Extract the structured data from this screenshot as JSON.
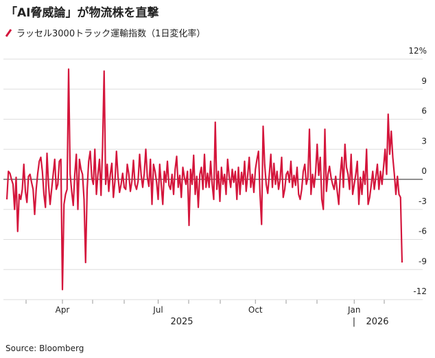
{
  "chart_data": {
    "type": "line",
    "title": "「AI脅威論」が物流株を直撃",
    "source": "Source: Bloomberg",
    "years": [
      "2025",
      "2026"
    ],
    "categories": [
      null,
      null,
      null,
      null,
      null,
      null,
      null,
      null,
      null,
      null,
      null,
      null,
      null,
      null,
      null,
      null,
      null,
      null,
      null,
      null,
      null,
      null,
      null,
      null,
      null,
      null,
      null,
      null,
      null,
      null,
      null,
      null,
      null,
      null,
      null,
      null,
      "Apr",
      null,
      null,
      null,
      null,
      null,
      null,
      null,
      null,
      null,
      null,
      null,
      null,
      null,
      null,
      null,
      null,
      null,
      null,
      null,
      null,
      null,
      null,
      null,
      null,
      null,
      null,
      null,
      null,
      null,
      null,
      null,
      null,
      null,
      null,
      null,
      null,
      null,
      null,
      null,
      null,
      null,
      null,
      null,
      null,
      null,
      null,
      null,
      null,
      null,
      null,
      null,
      null,
      null,
      null,
      null,
      null,
      null,
      null,
      null,
      null,
      null,
      "Jul",
      null,
      null,
      null,
      null,
      null,
      null,
      null,
      null,
      null,
      null,
      null,
      null,
      null,
      null,
      null,
      null,
      null,
      null,
      null,
      null,
      null,
      null,
      null,
      null,
      null,
      null,
      null,
      null,
      null,
      null,
      null,
      null,
      null,
      null,
      null,
      null,
      null,
      null,
      null,
      null,
      null,
      null,
      null,
      null,
      null,
      null,
      null,
      null,
      null,
      null,
      null,
      null,
      null,
      null,
      null,
      null,
      null,
      null,
      null,
      null,
      null,
      null,
      "Oct",
      null,
      null,
      null,
      null,
      null,
      null,
      null,
      null,
      null,
      null,
      null,
      null,
      null,
      null,
      null,
      null,
      null,
      null,
      null,
      null,
      null,
      null,
      null,
      null,
      null,
      null,
      null,
      null,
      null,
      null,
      null,
      null,
      null,
      null,
      null,
      null,
      null,
      null,
      null,
      null,
      null,
      null,
      null,
      null,
      null,
      null,
      null,
      null,
      null,
      null,
      null,
      null,
      null,
      null,
      null,
      null,
      null,
      null,
      null,
      null,
      null,
      null,
      null,
      "Jan",
      null,
      null,
      null,
      null,
      null,
      null,
      null,
      null,
      null,
      null,
      null,
      null,
      null,
      null,
      null,
      null,
      null,
      null,
      null,
      null,
      null,
      null,
      null,
      null,
      null,
      null,
      null,
      null,
      null,
      null,
      null
    ],
    "series": [
      {
        "name": "ラッセル3000トラック運輸指数（1日変化率）",
        "color": "#d4163c",
        "values": [
          -2,
          0.8,
          0.6,
          0,
          -0.5,
          -3,
          0.2,
          -5.2,
          -1.5,
          -2,
          -1,
          1.5,
          -1.2,
          -2.3,
          0.3,
          0.5,
          -0.3,
          -1,
          -3.5,
          -1,
          0.6,
          1.8,
          2.2,
          0.8,
          -1.5,
          -2.8,
          2.6,
          -0.5,
          -2.5,
          -1,
          0.5,
          2,
          -1,
          -0.5,
          1.8,
          2,
          -11,
          -2.5,
          -1.5,
          -1,
          11,
          0.5,
          -1.2,
          -2.6,
          0.5,
          2.5,
          -3,
          2,
          1,
          0.5,
          -2,
          -8.3,
          -1,
          1.8,
          2.8,
          0.2,
          -0.5,
          3,
          -1.5,
          0.5,
          2,
          -1.6,
          3.2,
          10.8,
          -0.5,
          1.5,
          -1.2,
          0.5,
          1.6,
          -1.8,
          -0.2,
          2.8,
          0.3,
          -1.3,
          -0.5,
          0.6,
          -0.8,
          -1,
          1.5,
          0.5,
          -1.2,
          -0.2,
          1.9,
          -0.5,
          -1,
          -0.2,
          2.5,
          0.4,
          -0.8,
          0.6,
          3,
          0.2,
          -0.7,
          2,
          -2.5,
          1.5,
          0.8,
          -0.3,
          -2,
          1.5,
          -0.5,
          -2.5,
          0.8,
          -0.3,
          1.8,
          -0.6,
          -1,
          0.5,
          -1.5,
          1,
          2.3,
          -0.8,
          0.4,
          -1.8,
          1.2,
          0.2,
          -0.5,
          0.8,
          -4.6,
          1,
          -0.5,
          2.4,
          -1.5,
          0.3,
          -2.8,
          0.5,
          1.2,
          -1,
          2.5,
          -0.8,
          0.6,
          -0.8,
          1.8,
          -0.5,
          -2,
          5.7,
          -1,
          0.8,
          -2.2,
          1.2,
          -0.5,
          0.5,
          -1.5,
          2,
          0.3,
          -0.8,
          1,
          -0.3,
          0.8,
          -2,
          1.2,
          -1.5,
          0.7,
          -0.5,
          1.8,
          -1.2,
          0.4,
          2.2,
          -0.8,
          0.5,
          -1.3,
          1,
          2,
          2.8,
          -1.5,
          -4.5,
          5.3,
          1.5,
          -0.5,
          -1.4,
          0.5,
          2.5,
          -0.8,
          1.6,
          -0.5,
          0.8,
          -1,
          0,
          2.2,
          -1.8,
          -1,
          0.5,
          0.8,
          -0.3,
          1.8,
          -0.8,
          0.4,
          -0.6,
          1.2,
          -1.5,
          -2,
          -1,
          0.8,
          1.5,
          -0.5,
          0.2,
          5,
          -1.5,
          0.5,
          -0.8,
          0.7,
          3.5,
          0.4,
          2.2,
          -2,
          -3,
          5,
          -1.2,
          0.5,
          1.3,
          0.2,
          -0.5,
          -1,
          0.3,
          -1.2,
          -2.5,
          0.5,
          2.2,
          -0.8,
          3.5,
          1.2,
          0.5,
          -1,
          2.5,
          -1.5,
          -0.5,
          0.5,
          1.8,
          -2.5,
          0.2,
          -1.5,
          0.8,
          -0.5,
          3,
          -2.5,
          -1.8,
          -0.6,
          0.8,
          -1,
          0.2,
          1.5,
          -1,
          0.8,
          -0.5,
          1.2,
          3,
          0.5,
          6.5,
          2.5,
          4.8,
          2.2,
          0.5,
          -1.5,
          0.3,
          -1.5,
          -1.8,
          -8.3
        ]
      }
    ],
    "ylim": [
      -12,
      12
    ],
    "yticks": [
      -12,
      -9,
      -6,
      -3,
      0,
      3,
      6,
      9,
      {
        "value": 12,
        "label": "12%"
      }
    ],
    "grid": true
  }
}
